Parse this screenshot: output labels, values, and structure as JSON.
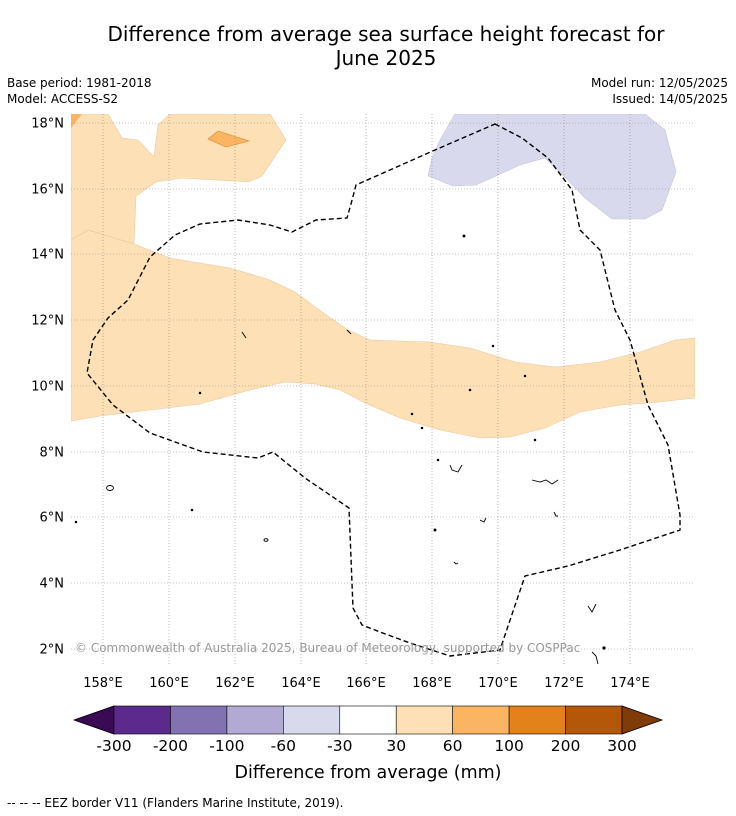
{
  "header": {
    "title_line1": "Difference from average sea surface height forecast for",
    "title_line2": "June 2025",
    "base_period": "Base period: 1981-2018",
    "model": "Model: ACCESS-S2",
    "model_run": "Model run: 12/05/2025",
    "issued": "Issued: 14/05/2025"
  },
  "map": {
    "lat_labels": [
      "2°N",
      "4°N",
      "6°N",
      "8°N",
      "10°N",
      "12°N",
      "14°N",
      "16°N",
      "18°N"
    ],
    "lon_labels": [
      "158°E",
      "160°E",
      "162°E",
      "164°E",
      "166°E",
      "168°E",
      "170°E",
      "172°E",
      "174°E"
    ],
    "copyright": "© Commonwealth of Australia 2025, Bureau of Meteorology, supported by COSPPac",
    "colors": {
      "band_30_60": "#fde0b5",
      "band_60_100": "#fbb462",
      "band_neg30_neg60": "#d8d9ec",
      "eez_line": "#000000"
    }
  },
  "colorbar": {
    "ticks": [
      "-300",
      "-200",
      "-100",
      "-60",
      "-30",
      "30",
      "60",
      "100",
      "200",
      "300"
    ],
    "colors": [
      "#3b0a55",
      "#5b2a8c",
      "#8272b2",
      "#b2aad2",
      "#d8d9ec",
      "#ffffff",
      "#fde0b5",
      "#fbb462",
      "#e3821b",
      "#b45709",
      "#7f3b08"
    ],
    "title": "Difference from average (mm)"
  },
  "footnote": "--  --  -- EEZ border V11 (Flanders Marine Institute, 2019)."
}
